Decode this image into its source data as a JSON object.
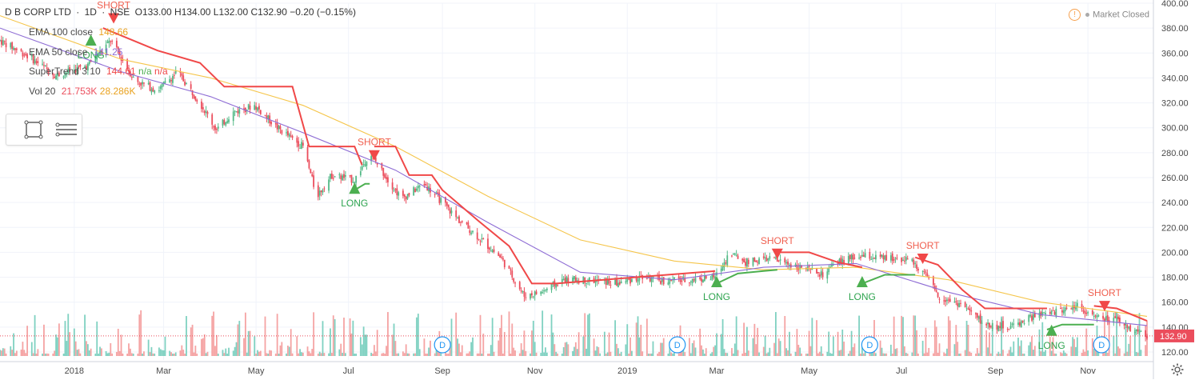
{
  "header": {
    "symbol": "D B CORP LTD",
    "interval": "1D",
    "exchange": "NSE",
    "open": "O133.00",
    "high": "H134.00",
    "low": "L132.00",
    "close": "C132.90",
    "change": "−0.20 (−0.15%)",
    "sep": "·"
  },
  "indicators": {
    "ema100": {
      "label": "EMA 100 close",
      "value": "148.66"
    },
    "ema50": {
      "label": "EMA 50 close",
      "value": "141.25"
    },
    "supertrend": {
      "label": "SuperTrend 3 10",
      "value": "144.61",
      "v2": "n/a",
      "v3": "n/a"
    },
    "volume": {
      "label": "Vol 20",
      "value": "21.753K",
      "v2": "28.286K"
    }
  },
  "market_status": "Market Closed",
  "colors": {
    "up": "#53b987",
    "down": "#eb4d5c",
    "ema100": "#f5c54a",
    "ema50": "#8e6cd4",
    "supertrend_down": "#f04848",
    "supertrend_up": "#4caf50",
    "vol_up": "#7fd1c1",
    "vol_down": "#f5a3a3",
    "last_price_bg": "#eb4d5c",
    "dividend": "#2196f3",
    "grid": "#f0f3fa",
    "short_text": "#f06050",
    "long_text": "#2ea44f"
  },
  "icons": {
    "rectangle": "rectangle-tool-icon",
    "lines": "horizontal-lines-tool-icon",
    "settings": "gear-icon",
    "warning": "warning-icon"
  },
  "chart_data": {
    "type": "candlestick",
    "symbol": "D B CORP LTD",
    "interval": "1D",
    "ylim": [
      120,
      400
    ],
    "yticks": [
      "400.00",
      "380.00",
      "360.00",
      "340.00",
      "320.00",
      "300.00",
      "280.00",
      "260.00",
      "240.00",
      "220.00",
      "200.00",
      "180.00",
      "160.00",
      "140.00",
      "120.00"
    ],
    "last_price_label": "132.90",
    "x_start": "2017-11-13",
    "x_end": "2019-12-10",
    "xticks": [
      {
        "date": "2018-01-01",
        "label": "2018"
      },
      {
        "date": "2018-03-01",
        "label": "Mar"
      },
      {
        "date": "2018-05-01",
        "label": "May"
      },
      {
        "date": "2018-07-01",
        "label": "Jul"
      },
      {
        "date": "2018-09-01",
        "label": "Sep"
      },
      {
        "date": "2018-11-01",
        "label": "Nov"
      },
      {
        "date": "2019-01-01",
        "label": "2019"
      },
      {
        "date": "2019-03-01",
        "label": "Mar"
      },
      {
        "date": "2019-05-01",
        "label": "May"
      },
      {
        "date": "2019-07-01",
        "label": "Jul"
      },
      {
        "date": "2019-09-01",
        "label": "Sep"
      },
      {
        "date": "2019-11-01",
        "label": "Nov"
      }
    ],
    "price_path": [
      [
        "2017-11-13",
        370
      ],
      [
        "2017-12-01",
        358
      ],
      [
        "2017-12-20",
        342
      ],
      [
        "2018-01-10",
        350
      ],
      [
        "2018-01-25",
        370
      ],
      [
        "2018-02-10",
        338
      ],
      [
        "2018-02-25",
        330
      ],
      [
        "2018-03-10",
        345
      ],
      [
        "2018-03-25",
        320
      ],
      [
        "2018-04-05",
        298
      ],
      [
        "2018-04-15",
        312
      ],
      [
        "2018-04-30",
        318
      ],
      [
        "2018-05-15",
        300
      ],
      [
        "2018-06-01",
        285
      ],
      [
        "2018-06-10",
        245
      ],
      [
        "2018-06-20",
        262
      ],
      [
        "2018-07-05",
        258
      ],
      [
        "2018-07-15",
        280
      ],
      [
        "2018-07-25",
        262
      ],
      [
        "2018-08-05",
        243
      ],
      [
        "2018-08-20",
        255
      ],
      [
        "2018-09-01",
        240
      ],
      [
        "2018-09-10",
        228
      ],
      [
        "2018-09-25",
        212
      ],
      [
        "2018-10-10",
        195
      ],
      [
        "2018-10-25",
        165
      ],
      [
        "2018-11-05",
        168
      ],
      [
        "2018-11-20",
        178
      ],
      [
        "2018-12-05",
        178
      ],
      [
        "2018-12-25",
        175
      ],
      [
        "2019-01-10",
        180
      ],
      [
        "2019-01-25",
        177
      ],
      [
        "2019-02-10",
        178
      ],
      [
        "2019-02-28",
        180
      ],
      [
        "2019-03-10",
        200
      ],
      [
        "2019-03-20",
        192
      ],
      [
        "2019-04-05",
        195
      ],
      [
        "2019-04-20",
        190
      ],
      [
        "2019-05-10",
        182
      ],
      [
        "2019-05-20",
        192
      ],
      [
        "2019-06-05",
        197
      ],
      [
        "2019-06-20",
        195
      ],
      [
        "2019-07-05",
        195
      ],
      [
        "2019-07-15",
        185
      ],
      [
        "2019-07-25",
        165
      ],
      [
        "2019-08-10",
        158
      ],
      [
        "2019-08-25",
        142
      ],
      [
        "2019-09-10",
        140
      ],
      [
        "2019-09-25",
        148
      ],
      [
        "2019-10-10",
        152
      ],
      [
        "2019-10-25",
        158
      ],
      [
        "2019-11-05",
        148
      ],
      [
        "2019-11-20",
        145
      ],
      [
        "2019-12-01",
        138
      ],
      [
        "2019-12-10",
        132.9
      ]
    ],
    "series": [
      {
        "name": "EMA 100 close",
        "points": [
          [
            "2017-11-13",
            390
          ],
          [
            "2018-02-01",
            355
          ],
          [
            "2018-04-01",
            340
          ],
          [
            "2018-06-01",
            318
          ],
          [
            "2018-08-01",
            285
          ],
          [
            "2018-10-01",
            245
          ],
          [
            "2018-12-01",
            210
          ],
          [
            "2019-02-01",
            193
          ],
          [
            "2019-04-01",
            186
          ],
          [
            "2019-06-01",
            188
          ],
          [
            "2019-08-01",
            178
          ],
          [
            "2019-10-01",
            160
          ],
          [
            "2019-12-10",
            148.66
          ]
        ]
      },
      {
        "name": "EMA 50 close",
        "points": [
          [
            "2017-11-13",
            380
          ],
          [
            "2018-02-01",
            345
          ],
          [
            "2018-04-01",
            325
          ],
          [
            "2018-06-01",
            296
          ],
          [
            "2018-08-01",
            266
          ],
          [
            "2018-10-01",
            224
          ],
          [
            "2018-12-01",
            184
          ],
          [
            "2019-02-01",
            178
          ],
          [
            "2019-04-01",
            188
          ],
          [
            "2019-06-01",
            191
          ],
          [
            "2019-08-01",
            168
          ],
          [
            "2019-10-01",
            150
          ],
          [
            "2019-12-10",
            141.25
          ]
        ]
      }
    ],
    "supertrend": [
      {
        "trend": "down",
        "points": [
          [
            "2018-01-20",
            380
          ],
          [
            "2018-02-25",
            362
          ],
          [
            "2018-03-25",
            352
          ],
          [
            "2018-04-10",
            333
          ],
          [
            "2018-05-25",
            333
          ],
          [
            "2018-06-05",
            285
          ],
          [
            "2018-07-05",
            285
          ],
          [
            "2018-07-10",
            270
          ]
        ]
      },
      {
        "trend": "up",
        "points": [
          [
            "2018-07-05",
            250
          ],
          [
            "2018-07-12",
            255
          ],
          [
            "2018-07-15",
            255
          ]
        ]
      },
      {
        "trend": "down",
        "points": [
          [
            "2018-07-18",
            285
          ],
          [
            "2018-08-01",
            285
          ],
          [
            "2018-08-10",
            262
          ],
          [
            "2018-08-25",
            262
          ],
          [
            "2018-09-01",
            250
          ],
          [
            "2018-09-25",
            225
          ],
          [
            "2018-10-15",
            205
          ],
          [
            "2018-10-30",
            175
          ],
          [
            "2018-11-15",
            175
          ],
          [
            "2019-02-28",
            185
          ]
        ]
      },
      {
        "trend": "up",
        "points": [
          [
            "2019-03-01",
            175
          ],
          [
            "2019-03-15",
            183
          ],
          [
            "2019-04-01",
            185
          ],
          [
            "2019-04-10",
            186
          ]
        ]
      },
      {
        "trend": "down",
        "points": [
          [
            "2019-04-10",
            200
          ],
          [
            "2019-05-01",
            200
          ],
          [
            "2019-05-20",
            192
          ],
          [
            "2019-06-05",
            188
          ]
        ]
      },
      {
        "trend": "up",
        "points": [
          [
            "2019-06-05",
            175
          ],
          [
            "2019-06-20",
            182
          ],
          [
            "2019-07-10",
            182
          ]
        ]
      },
      {
        "trend": "down",
        "points": [
          [
            "2019-07-10",
            196
          ],
          [
            "2019-07-25",
            190
          ],
          [
            "2019-08-10",
            170
          ],
          [
            "2019-08-25",
            155
          ],
          [
            "2019-10-05",
            155
          ]
        ]
      },
      {
        "trend": "up",
        "points": [
          [
            "2019-10-05",
            138
          ],
          [
            "2019-10-15",
            142
          ],
          [
            "2019-11-05",
            142
          ]
        ]
      },
      {
        "trend": "down",
        "points": [
          [
            "2019-11-05",
            157
          ],
          [
            "2019-11-20",
            155
          ],
          [
            "2019-12-10",
            145
          ]
        ]
      }
    ],
    "signals": [
      {
        "type": "SHORT",
        "date": "2018-01-27",
        "price": 392
      },
      {
        "type": "LONG",
        "date": "2018-01-12",
        "price": 366
      },
      {
        "type": "LONG",
        "date": "2018-07-05",
        "price": 247
      },
      {
        "type": "SHORT",
        "date": "2018-07-18",
        "price": 282
      },
      {
        "type": "LONG",
        "date": "2019-03-01",
        "price": 172
      },
      {
        "type": "SHORT",
        "date": "2019-04-10",
        "price": 203
      },
      {
        "type": "LONG",
        "date": "2019-06-05",
        "price": 172
      },
      {
        "type": "SHORT",
        "date": "2019-07-15",
        "price": 199
      },
      {
        "type": "SHORT",
        "date": "2019-11-12",
        "price": 161
      },
      {
        "type": "LONG",
        "date": "2019-10-08",
        "price": 133
      }
    ],
    "dividends": [
      {
        "date": "2018-09-01",
        "label": "D"
      },
      {
        "date": "2019-02-03",
        "label": "D"
      },
      {
        "date": "2019-06-10",
        "label": "D"
      },
      {
        "date": "2019-11-10",
        "label": "D"
      }
    ]
  }
}
